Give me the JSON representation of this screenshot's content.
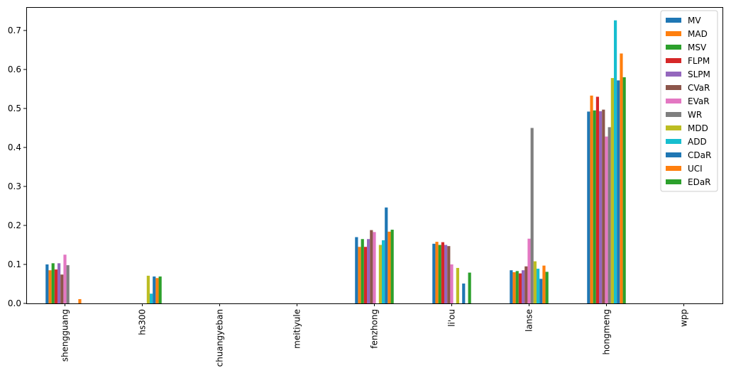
{
  "chart_data": {
    "type": "bar",
    "title": "",
    "xlabel": "",
    "ylabel": "",
    "ylim": [
      0,
      0.76
    ],
    "yticks": [
      0.0,
      0.1,
      0.2,
      0.3,
      0.4,
      0.5,
      0.6,
      0.7
    ],
    "ytick_labels": [
      "0.0",
      "0.1",
      "0.2",
      "0.3",
      "0.4",
      "0.5",
      "0.6",
      "0.7"
    ],
    "grid": false,
    "legend_position": "top-right",
    "categories": [
      "shengguang",
      "hs300",
      "chuangyeban",
      "meitiyule",
      "fenzhong",
      "li'ou",
      "lanse",
      "hongmeng",
      "wpp"
    ],
    "series": [
      {
        "name": "MV",
        "color": "#1f77b4",
        "values": [
          0.1,
          0.0,
          0.0,
          0.0,
          0.17,
          0.153,
          0.085,
          0.492,
          0.0
        ]
      },
      {
        "name": "MAD",
        "color": "#ff7f0e",
        "values": [
          0.085,
          0.0,
          0.0,
          0.0,
          0.145,
          0.158,
          0.08,
          0.533,
          0.0
        ]
      },
      {
        "name": "MSV",
        "color": "#2ca02c",
        "values": [
          0.103,
          0.0,
          0.0,
          0.0,
          0.165,
          0.15,
          0.083,
          0.495,
          0.0
        ]
      },
      {
        "name": "FLPM",
        "color": "#d62728",
        "values": [
          0.087,
          0.0,
          0.0,
          0.0,
          0.145,
          0.157,
          0.077,
          0.53,
          0.0
        ]
      },
      {
        "name": "SLPM",
        "color": "#9467bd",
        "values": [
          0.103,
          0.0,
          0.0,
          0.0,
          0.165,
          0.15,
          0.085,
          0.493,
          0.0
        ]
      },
      {
        "name": "CVaR",
        "color": "#8c564b",
        "values": [
          0.074,
          0.0,
          0.0,
          0.0,
          0.188,
          0.147,
          0.095,
          0.497,
          0.0
        ]
      },
      {
        "name": "EVaR",
        "color": "#e377c2",
        "values": [
          0.125,
          0.0,
          0.0,
          0.0,
          0.183,
          0.1,
          0.166,
          0.428,
          0.0
        ]
      },
      {
        "name": "WR",
        "color": "#7f7f7f",
        "values": [
          0.098,
          0.0,
          0.0,
          0.0,
          0.0,
          0.0,
          0.45,
          0.452,
          0.0
        ]
      },
      {
        "name": "MDD",
        "color": "#bcbd22",
        "values": [
          0.0,
          0.071,
          0.0,
          0.0,
          0.15,
          0.091,
          0.108,
          0.578,
          0.0
        ]
      },
      {
        "name": "ADD",
        "color": "#17becf",
        "values": [
          0.0,
          0.025,
          0.0,
          0.0,
          0.162,
          0.0,
          0.089,
          0.726,
          0.0
        ]
      },
      {
        "name": "CDaR",
        "color": "#1f77b4",
        "values": [
          0.0,
          0.069,
          0.0,
          0.0,
          0.246,
          0.051,
          0.063,
          0.572,
          0.0
        ]
      },
      {
        "name": "UCI",
        "color": "#ff7f0e",
        "values": [
          0.011,
          0.065,
          0.0,
          0.0,
          0.184,
          0.0,
          0.097,
          0.641,
          0.0
        ]
      },
      {
        "name": "EDaR",
        "color": "#2ca02c",
        "values": [
          0.0,
          0.069,
          0.0,
          0.0,
          0.189,
          0.079,
          0.081,
          0.58,
          0.0
        ]
      }
    ]
  }
}
